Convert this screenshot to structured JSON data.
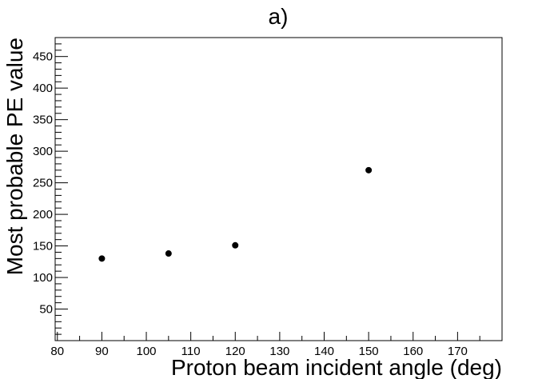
{
  "chart_data": {
    "type": "scatter",
    "title": "a)",
    "xlabel": "Proton beam incident angle (deg)",
    "ylabel": "Most probable PE value",
    "xlim": [
      79.5,
      180
    ],
    "ylim": [
      0,
      480
    ],
    "xticks": [
      80,
      90,
      100,
      110,
      120,
      130,
      140,
      150,
      160,
      170
    ],
    "yticks": [
      50,
      100,
      150,
      200,
      250,
      300,
      350,
      400,
      450
    ],
    "grid": false,
    "series": [
      {
        "x": [
          90,
          105,
          120,
          150
        ],
        "y": [
          130,
          138,
          151,
          270
        ],
        "color": "#000000",
        "marker": "circle"
      }
    ]
  }
}
